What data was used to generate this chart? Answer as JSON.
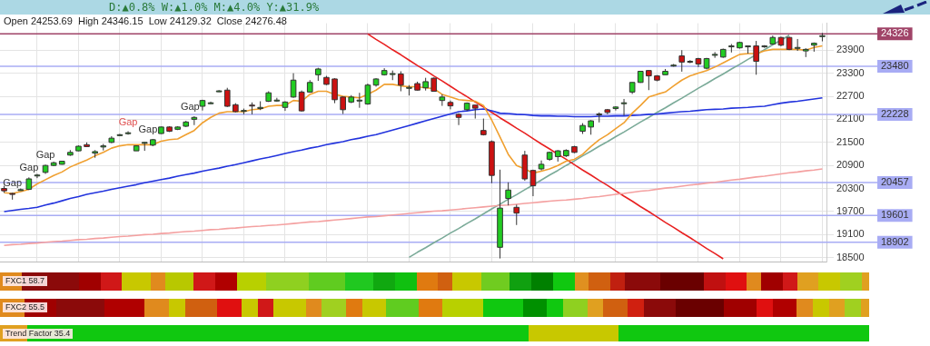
{
  "chart_data": {
    "type": "candlestick",
    "subtitle": "D:▲0.8%  W:▲1.0%  M:▲4.0%  Y:▲31.9%",
    "annotations": [
      "Open 24253.69  High 24346.15  Low 24129.32  Close 24276.48",
      "FXC1 58.7",
      "FXC2 55.5",
      "Trend Factor 35.4",
      "Gap",
      "Gap",
      "Gap",
      "Gap",
      "Gap",
      "Gap"
    ],
    "categories": [
      null,
      null,
      null,
      null,
      null,
      null,
      null,
      null,
      null,
      null,
      null,
      null,
      null,
      null,
      null,
      null,
      null,
      null,
      null,
      null,
      null,
      null,
      null,
      null,
      null,
      null,
      null,
      null,
      null,
      null,
      null,
      null,
      null,
      null,
      null,
      null,
      null,
      null,
      null,
      null,
      null,
      null,
      null,
      null,
      null,
      null,
      null,
      null,
      null,
      null,
      null,
      null,
      null,
      null,
      null,
      null,
      null,
      null,
      null,
      null,
      null,
      null,
      null,
      null,
      null,
      null,
      null,
      null,
      null,
      null,
      null,
      null,
      null,
      null,
      null,
      null,
      null,
      null,
      null,
      null,
      null,
      null,
      null,
      null,
      null,
      null,
      null,
      null,
      null,
      null,
      null,
      null,
      null,
      null,
      null,
      null,
      null,
      null,
      null,
      null
    ],
    "ohlc": [
      [
        20300,
        20370,
        20190,
        20240
      ],
      [
        20170,
        20190,
        20010,
        20150
      ],
      [
        20260,
        20300,
        20240,
        20270
      ],
      [
        20280,
        20590,
        20260,
        20550
      ],
      [
        20640,
        20680,
        20570,
        20650
      ],
      [
        20720,
        20920,
        20680,
        20900
      ],
      [
        20900,
        21000,
        20880,
        20970
      ],
      [
        20930,
        21020,
        20920,
        21010
      ],
      [
        21170,
        21300,
        21150,
        21240
      ],
      [
        21280,
        21420,
        21270,
        21400
      ],
      [
        21440,
        21500,
        21380,
        21390
      ],
      [
        21220,
        21300,
        21100,
        21260
      ],
      [
        21380,
        21460,
        21290,
        21410
      ],
      [
        21500,
        21660,
        21480,
        21610
      ],
      [
        21690,
        21720,
        21670,
        21700
      ],
      [
        21730,
        21790,
        21700,
        21750
      ],
      [
        21280,
        21420,
        21280,
        21410
      ],
      [
        21490,
        21510,
        21280,
        21500
      ],
      [
        21430,
        21590,
        21400,
        21570
      ],
      [
        21730,
        21910,
        21720,
        21900
      ],
      [
        21900,
        21920,
        21770,
        21790
      ],
      [
        21840,
        21920,
        21820,
        21900
      ],
      [
        21920,
        22060,
        21900,
        22030
      ],
      [
        22100,
        22180,
        21950,
        22150
      ],
      [
        22440,
        22610,
        22330,
        22590
      ],
      [
        22520,
        22560,
        22500,
        22530
      ],
      [
        22830,
        22860,
        22810,
        22840
      ],
      [
        22860,
        22920,
        22420,
        22440
      ],
      [
        22480,
        22520,
        22280,
        22300
      ],
      [
        22320,
        22380,
        22230,
        22330
      ],
      [
        22470,
        22540,
        22230,
        22450
      ],
      [
        22380,
        22570,
        22340,
        22410
      ],
      [
        22570,
        22830,
        22550,
        22790
      ],
      [
        22590,
        22660,
        22560,
        22600
      ],
      [
        22410,
        22570,
        22320,
        22550
      ],
      [
        22680,
        23300,
        22660,
        23120
      ],
      [
        22810,
        22850,
        22300,
        22320
      ],
      [
        22810,
        23120,
        22790,
        23060
      ],
      [
        23260,
        23440,
        23100,
        23410
      ],
      [
        23190,
        23230,
        22990,
        23010
      ],
      [
        23150,
        23170,
        22520,
        22610
      ],
      [
        22680,
        22700,
        22240,
        22350
      ],
      [
        22550,
        22730,
        22520,
        22680
      ],
      [
        22590,
        22790,
        22400,
        22600
      ],
      [
        22500,
        23030,
        22480,
        22990
      ],
      [
        22990,
        23170,
        22950,
        23150
      ],
      [
        23260,
        23430,
        23240,
        23370
      ],
      [
        23280,
        23370,
        23120,
        23290
      ],
      [
        23280,
        23350,
        22830,
        22990
      ],
      [
        22920,
        22990,
        22720,
        22930
      ],
      [
        23030,
        23080,
        22850,
        22860
      ],
      [
        22920,
        23180,
        22850,
        23080
      ],
      [
        23170,
        23190,
        22830,
        22830
      ],
      [
        22590,
        22750,
        22450,
        22680
      ],
      [
        22540,
        22590,
        22360,
        22450
      ],
      [
        22230,
        22260,
        21950,
        22150
      ],
      [
        22350,
        22540,
        22320,
        22520
      ],
      [
        22470,
        22470,
        22120,
        22390
      ],
      [
        21810,
        22120,
        21680,
        21700
      ],
      [
        21520,
        21550,
        20440,
        20640
      ],
      [
        18770,
        20790,
        18480,
        19790
      ],
      [
        20040,
        20460,
        19860,
        20260
      ],
      [
        19810,
        19880,
        19350,
        19660
      ],
      [
        21170,
        21280,
        20500,
        20550
      ],
      [
        20770,
        20790,
        20100,
        20370
      ],
      [
        20810,
        21030,
        20770,
        20930
      ],
      [
        21060,
        21260,
        21020,
        21240
      ],
      [
        21130,
        21300,
        21000,
        21280
      ],
      [
        21150,
        21320,
        21120,
        21290
      ],
      [
        21390,
        21410,
        21220,
        21240
      ],
      [
        21790,
        22000,
        21720,
        21940
      ],
      [
        21900,
        22080,
        21700,
        22060
      ],
      [
        22230,
        22280,
        22020,
        22240
      ],
      [
        22350,
        22370,
        22230,
        22280
      ],
      [
        22380,
        22440,
        22330,
        22420
      ],
      [
        22520,
        22630,
        22200,
        22530
      ],
      [
        22810,
        23060,
        22760,
        23060
      ],
      [
        23060,
        23360,
        23050,
        23350
      ],
      [
        23370,
        23380,
        22860,
        23230
      ],
      [
        23230,
        23250,
        23090,
        23120
      ],
      [
        23260,
        23410,
        23260,
        23350
      ],
      [
        23500,
        23540,
        23470,
        23510
      ],
      [
        23750,
        23900,
        23340,
        23590
      ],
      [
        23590,
        23640,
        23560,
        23610
      ],
      [
        23680,
        23700,
        23460,
        23540
      ],
      [
        23430,
        23700,
        23400,
        23680
      ],
      [
        23780,
        23850,
        23700,
        23790
      ],
      [
        23720,
        23940,
        23700,
        23920
      ],
      [
        24000,
        24060,
        23840,
        24010
      ],
      [
        23960,
        24120,
        23940,
        24100
      ],
      [
        24000,
        24020,
        23810,
        24010
      ],
      [
        24010,
        24140,
        23260,
        23610
      ],
      [
        24000,
        24030,
        23960,
        24010
      ],
      [
        24060,
        24280,
        24040,
        24230
      ],
      [
        24230,
        24250,
        24000,
        24030
      ],
      [
        24230,
        24250,
        23900,
        23920
      ],
      [
        23960,
        24190,
        23880,
        23970
      ],
      [
        23880,
        23950,
        23720,
        23920
      ],
      [
        24030,
        24100,
        23860,
        24080
      ],
      [
        24253.69,
        24346.15,
        24129.32,
        24276.48
      ]
    ],
    "series": [
      {
        "type": "line",
        "color": "#f0a030",
        "values": [
          20190,
          20170,
          20220,
          20280,
          20420,
          20530,
          20640,
          20730,
          20860,
          20950,
          21040,
          21150,
          21240,
          21350,
          21410,
          21440,
          21440,
          21440,
          21440,
          21530,
          21570,
          21590,
          21700,
          21810,
          22010,
          22150,
          22260,
          22300,
          22300,
          22300,
          22350,
          22370,
          22440,
          22460,
          22460,
          22590,
          22570,
          22750,
          22830,
          22830,
          22750,
          22700,
          22680,
          22660,
          22750,
          22860,
          23010,
          23010,
          22970,
          22950,
          22950,
          22920,
          22900,
          22750,
          22680,
          22610,
          22590,
          22570,
          22460,
          22080,
          21640,
          21190,
          20900,
          20810,
          20700,
          20750,
          20810,
          20900,
          21010,
          21060,
          21190,
          21390,
          21570,
          21700,
          21860,
          22010,
          22260,
          22460,
          22680,
          22750,
          22810,
          22970,
          23120,
          23230,
          23300,
          23370,
          23460,
          23570,
          23680,
          23790,
          23810,
          23810,
          23880,
          23920,
          23920,
          23920,
          23920,
          23900,
          23970,
          24010
        ]
      },
      {
        "type": "line",
        "color": "#2233dd",
        "values": [
          19700,
          19730,
          19760,
          19780,
          19810,
          19870,
          19920,
          19980,
          20040,
          20090,
          20150,
          20190,
          20230,
          20280,
          20320,
          20360,
          20400,
          20450,
          20490,
          20530,
          20570,
          20620,
          20660,
          20700,
          20750,
          20790,
          20830,
          20880,
          20920,
          20970,
          21020,
          21070,
          21110,
          21160,
          21210,
          21260,
          21300,
          21350,
          21390,
          21440,
          21480,
          21520,
          21570,
          21610,
          21660,
          21700,
          21760,
          21820,
          21880,
          21940,
          22000,
          22060,
          22120,
          22180,
          22240,
          22300,
          22320,
          22350,
          22370,
          22320,
          22260,
          22250,
          22230,
          22220,
          22200,
          22190,
          22190,
          22180,
          22180,
          22170,
          22170,
          22170,
          22180,
          22180,
          22190,
          22190,
          22200,
          22210,
          22230,
          22240,
          22260,
          22280,
          22300,
          22310,
          22330,
          22350,
          22360,
          22370,
          22390,
          22400,
          22410,
          22430,
          22440,
          22480,
          22520,
          22550,
          22570,
          22600,
          22630,
          22660
        ]
      },
      {
        "type": "line",
        "color": "#f4a0a0",
        "values": [
          18820,
          18840,
          18850,
          18870,
          18880,
          18900,
          18920,
          18930,
          18950,
          18970,
          18980,
          19000,
          19010,
          19030,
          19050,
          19060,
          19080,
          19100,
          19110,
          19130,
          19140,
          19160,
          19180,
          19190,
          19210,
          19230,
          19240,
          19260,
          19270,
          19290,
          19310,
          19320,
          19340,
          19350,
          19370,
          19390,
          19410,
          19430,
          19440,
          19460,
          19480,
          19500,
          19520,
          19540,
          19560,
          19570,
          19590,
          19610,
          19630,
          19650,
          19670,
          19690,
          19710,
          19720,
          19740,
          19760,
          19780,
          19800,
          19820,
          19840,
          19860,
          19870,
          19890,
          19910,
          19930,
          19950,
          19970,
          19990,
          20000,
          20020,
          20040,
          20070,
          20090,
          20120,
          20150,
          20170,
          20200,
          20230,
          20250,
          20280,
          20310,
          20330,
          20360,
          20390,
          20410,
          20440,
          20460,
          20490,
          20520,
          20540,
          20570,
          20600,
          20620,
          20650,
          20680,
          20710,
          20730,
          20760,
          20780,
          20810
        ]
      },
      {
        "type": "line",
        "color": "#e82020",
        "values": [
          null,
          null,
          null,
          null,
          null,
          null,
          null,
          null,
          null,
          null,
          null,
          null,
          null,
          null,
          null,
          null,
          null,
          null,
          null,
          null,
          null,
          null,
          null,
          null,
          null,
          null,
          null,
          null,
          null,
          null,
          null,
          null,
          null,
          null,
          null,
          null,
          null,
          null,
          null,
          null,
          null,
          null,
          null,
          null,
          24320,
          24180,
          24050,
          23910,
          23780,
          23640,
          23500,
          23370,
          23230,
          23100,
          22960,
          22820,
          22690,
          22550,
          22420,
          22280,
          22140,
          22010,
          21870,
          21740,
          21600,
          21460,
          21330,
          21190,
          21060,
          20920,
          20780,
          20650,
          20510,
          20380,
          20240,
          20100,
          19970,
          19830,
          19700,
          19560,
          19420,
          19290,
          19150,
          19020,
          18880,
          18740,
          18610,
          18470,
          null,
          null,
          null,
          null,
          null,
          null,
          null,
          null,
          null,
          null,
          null,
          null
        ]
      },
      {
        "type": "line",
        "color": "#7aaa98",
        "values": [
          null,
          null,
          null,
          null,
          null,
          null,
          null,
          null,
          null,
          null,
          null,
          null,
          null,
          null,
          null,
          null,
          null,
          null,
          null,
          null,
          null,
          null,
          null,
          null,
          null,
          null,
          null,
          null,
          null,
          null,
          null,
          null,
          null,
          null,
          null,
          null,
          null,
          null,
          null,
          null,
          null,
          null,
          null,
          null,
          null,
          null,
          null,
          null,
          null,
          18510,
          18640,
          18760,
          18890,
          19010,
          19140,
          19260,
          19390,
          19510,
          19640,
          19770,
          19890,
          20020,
          20140,
          20270,
          20390,
          20520,
          20650,
          20770,
          20900,
          21020,
          21150,
          21270,
          21400,
          21520,
          21650,
          21770,
          21900,
          22030,
          22150,
          22280,
          22400,
          22530,
          22650,
          22780,
          22910,
          23030,
          23160,
          23280,
          23410,
          23530,
          23660,
          23780,
          23910,
          24040,
          24160,
          24290,
          null,
          null,
          null,
          null
        ]
      }
    ],
    "ylim": [
      18390,
      24600
    ],
    "yticks": [
      18500,
      19100,
      19700,
      20300,
      20900,
      21500,
      22100,
      22700,
      23300,
      23900
    ],
    "ref_lines": [
      {
        "axis": "y",
        "value": 24326,
        "label": "24326",
        "color": "#a04468"
      },
      {
        "axis": "y",
        "value": 23480,
        "label": "23480",
        "color": "#a8acf4"
      },
      {
        "axis": "y",
        "value": 22228,
        "label": "22228",
        "color": "#a8acf4"
      },
      {
        "axis": "y",
        "value": 20457,
        "label": "20457",
        "color": "#a8acf4"
      },
      {
        "axis": "y",
        "value": 19601,
        "label": "19601",
        "color": "#a8acf4"
      },
      {
        "axis": "y",
        "value": 18902,
        "label": "18902",
        "color": "#a8acf4"
      }
    ],
    "grid": true,
    "tick_labels": "y"
  }
}
